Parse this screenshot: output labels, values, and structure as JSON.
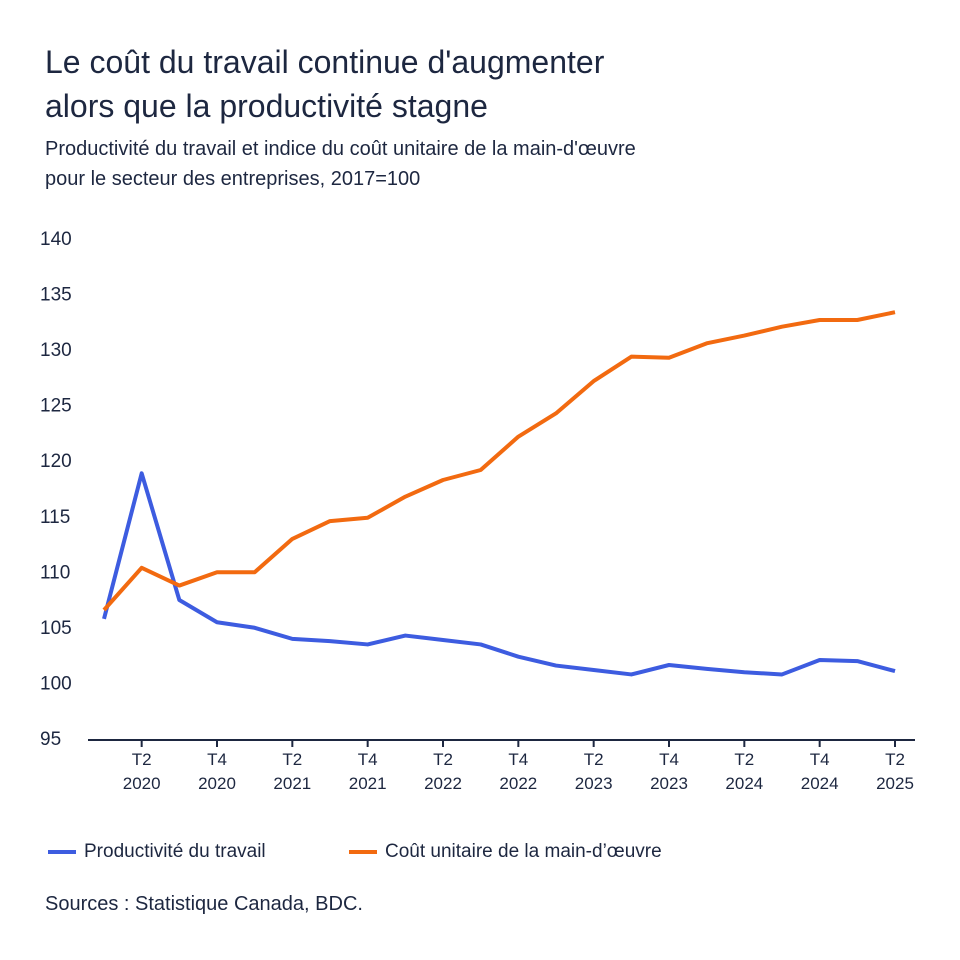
{
  "chart_data": {
    "type": "line",
    "title": "Le coût du travail continue d'augmenter\nalors que la productivité stagne",
    "subtitle": "Productivité du travail et indice du coût unitaire de la main-d'œuvre\npour le secteur des entreprises, 2017=100",
    "source": "Sources : Statistique Canada, BDC.",
    "categories": [
      null,
      "T2\n2020",
      null,
      "T4\n2020",
      null,
      "T2\n2021",
      null,
      "T4\n2021",
      null,
      "T2\n2022",
      null,
      "T4\n2022",
      null,
      "T2\n2023",
      null,
      "T4\n2023",
      null,
      "T2\n2024",
      null,
      "T4\n2024",
      null,
      "T2\n2025"
    ],
    "series": [
      {
        "name": "Productivité du travail",
        "color": "#3d5ce0",
        "values": [
          105.9,
          119.0,
          107.6,
          105.6,
          105.1,
          104.1,
          103.9,
          103.6,
          104.4,
          104.0,
          103.6,
          102.5,
          101.7,
          101.3,
          100.9,
          101.75,
          101.4,
          101.1,
          100.9,
          102.2,
          102.1,
          101.2
        ]
      },
      {
        "name": "Coût unitaire de la main-d’œuvre",
        "color": "#f26a10",
        "values": [
          106.7,
          110.5,
          108.9,
          110.1,
          110.1,
          113.1,
          114.7,
          115.0,
          116.9,
          118.4,
          119.3,
          122.3,
          124.4,
          127.3,
          129.5,
          129.4,
          130.7,
          131.4,
          132.2,
          132.8,
          132.8,
          133.5
        ]
      }
    ],
    "ylim": [
      95,
      140
    ],
    "yticks": [
      95,
      100,
      105,
      110,
      115,
      120,
      125,
      130,
      135,
      140
    ],
    "grid": false,
    "legend": "bottom"
  }
}
